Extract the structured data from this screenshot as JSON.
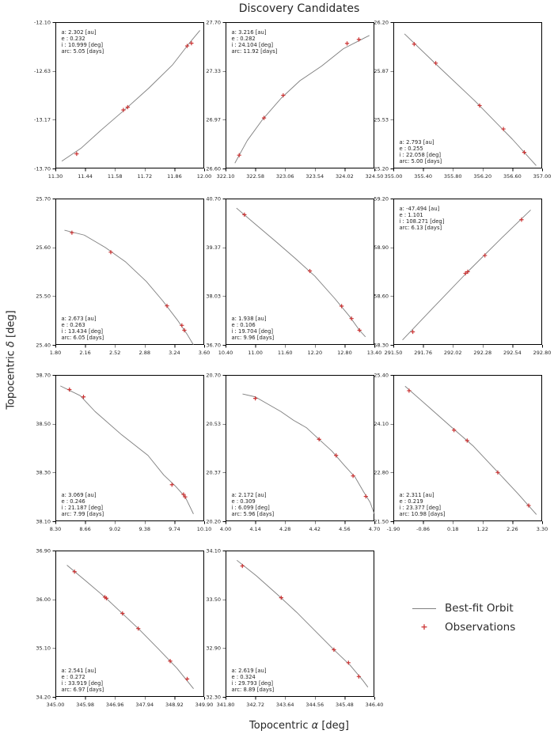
{
  "title": "Discovery Candidates",
  "xlabel": {
    "pre": "Topocentric ",
    "sym": "α",
    "post": " [deg]"
  },
  "ylabel": {
    "pre": "Topocentric ",
    "sym": "δ",
    "post": " [deg]"
  },
  "legend": {
    "line_label": "Best-fit Orbit",
    "marker_label": "Observations"
  },
  "colors": {
    "orbit": "#7f7f7f",
    "observation": "#cc3333",
    "text": "#262626",
    "spine": "#000000"
  },
  "chart_data": [
    {
      "type": "line",
      "row": 0,
      "col": 0,
      "xlim": [
        11.3,
        12.0
      ],
      "ylim": [
        -13.7,
        -12.1
      ],
      "xticks": [
        "11.30",
        "11.44",
        "11.58",
        "11.72",
        "11.86",
        "12.00"
      ],
      "yticks": [
        "-12.10",
        "-12.63",
        "-13.17",
        "-13.70"
      ],
      "annotation": [
        "a: 2.302 [au]",
        "e : 0.232",
        "i : 10.999 [deg]",
        "arc: 5.05 [days]"
      ],
      "annotation_pos": "top-left",
      "orbit": [
        [
          11.33,
          -13.62
        ],
        [
          11.42,
          -13.48
        ],
        [
          11.52,
          -13.27
        ],
        [
          11.63,
          -13.05
        ],
        [
          11.74,
          -12.82
        ],
        [
          11.85,
          -12.57
        ],
        [
          11.93,
          -12.33
        ],
        [
          11.98,
          -12.19
        ]
      ],
      "observations": [
        [
          11.4,
          -13.54
        ],
        [
          11.62,
          -13.06
        ],
        [
          11.64,
          -13.03
        ],
        [
          11.92,
          -12.36
        ],
        [
          11.94,
          -12.33
        ]
      ]
    },
    {
      "type": "line",
      "row": 0,
      "col": 1,
      "xlim": [
        322.1,
        324.5
      ],
      "ylim": [
        26.6,
        27.7
      ],
      "xticks": [
        "322.10",
        "322.58",
        "323.06",
        "323.54",
        "324.02",
        "324.50"
      ],
      "yticks": [
        "27.70",
        "27.33",
        "26.97",
        "26.60"
      ],
      "annotation": [
        "a: 3.216 [au]",
        "e : 0.282",
        "i : 24.104 [deg]",
        "arc: 11.92 [days]"
      ],
      "annotation_pos": "top-left",
      "orbit": [
        [
          322.25,
          26.64
        ],
        [
          322.45,
          26.81
        ],
        [
          322.7,
          26.97
        ],
        [
          323.0,
          27.13
        ],
        [
          323.3,
          27.26
        ],
        [
          323.65,
          27.37
        ],
        [
          324.0,
          27.5
        ],
        [
          324.25,
          27.56
        ],
        [
          324.42,
          27.6
        ]
      ],
      "observations": [
        [
          322.32,
          26.7
        ],
        [
          322.72,
          26.98
        ],
        [
          323.03,
          27.15
        ],
        [
          324.06,
          27.54
        ],
        [
          324.25,
          27.57
        ]
      ]
    },
    {
      "type": "line",
      "row": 0,
      "col": 2,
      "xlim": [
        355.0,
        357.0
      ],
      "ylim": [
        25.2,
        26.2
      ],
      "xticks": [
        "355.00",
        "355.40",
        "355.80",
        "356.20",
        "356.60",
        "357.00"
      ],
      "yticks": [
        "26.20",
        "25.87",
        "25.53",
        "25.20"
      ],
      "annotation": [
        "a: 2.793 [au]",
        "e : 0.255",
        "i : 22.058 [deg]",
        "arc: 5.00 [days]"
      ],
      "annotation_pos": "bottom-left",
      "orbit": [
        [
          355.15,
          26.12
        ],
        [
          355.6,
          25.9
        ],
        [
          356.1,
          25.66
        ],
        [
          356.6,
          25.4
        ],
        [
          356.92,
          25.22
        ]
      ],
      "observations": [
        [
          355.28,
          26.05
        ],
        [
          355.57,
          25.92
        ],
        [
          356.16,
          25.63
        ],
        [
          356.48,
          25.47
        ],
        [
          356.76,
          25.31
        ]
      ]
    },
    {
      "type": "line",
      "row": 1,
      "col": 0,
      "xlim": [
        1.8,
        3.6
      ],
      "ylim": [
        25.4,
        25.7
      ],
      "xticks": [
        "1.80",
        "2.16",
        "2.52",
        "2.88",
        "3.24",
        "3.60"
      ],
      "yticks": [
        "25.70",
        "25.60",
        "25.50",
        "25.40"
      ],
      "annotation": [
        "a: 2.673 [au]",
        "e : 0.263",
        "i : 13.434 [deg]",
        "arc: 6.05 [days]"
      ],
      "annotation_pos": "bottom-left",
      "orbit": [
        [
          1.91,
          25.635
        ],
        [
          2.15,
          25.625
        ],
        [
          2.4,
          25.6
        ],
        [
          2.65,
          25.57
        ],
        [
          2.9,
          25.53
        ],
        [
          3.1,
          25.49
        ],
        [
          3.28,
          25.45
        ],
        [
          3.4,
          25.42
        ],
        [
          3.47,
          25.4
        ]
      ],
      "observations": [
        [
          2.0,
          25.63
        ],
        [
          2.47,
          25.59
        ],
        [
          3.15,
          25.48
        ],
        [
          3.33,
          25.44
        ],
        [
          3.36,
          25.43
        ]
      ]
    },
    {
      "type": "line",
      "row": 1,
      "col": 1,
      "xlim": [
        10.4,
        13.4
      ],
      "ylim": [
        36.7,
        40.7
      ],
      "xticks": [
        "10.40",
        "11.00",
        "11.60",
        "12.20",
        "12.80",
        "13.40"
      ],
      "yticks": [
        "40.70",
        "39.37",
        "38.03",
        "36.70"
      ],
      "annotation": [
        "a: 1.938 [au]",
        "e : 0.106",
        "i : 19.704 [deg]",
        "arc: 9.96 [days]"
      ],
      "annotation_pos": "bottom-left",
      "orbit": [
        [
          10.62,
          40.44
        ],
        [
          11.0,
          40.0
        ],
        [
          11.4,
          39.54
        ],
        [
          11.8,
          39.07
        ],
        [
          12.2,
          38.58
        ],
        [
          12.6,
          37.97
        ],
        [
          12.9,
          37.48
        ],
        [
          13.1,
          37.1
        ],
        [
          13.22,
          36.92
        ]
      ],
      "observations": [
        [
          10.78,
          40.26
        ],
        [
          12.1,
          38.72
        ],
        [
          12.74,
          37.76
        ],
        [
          12.94,
          37.42
        ],
        [
          13.1,
          37.1
        ]
      ]
    },
    {
      "type": "line",
      "row": 1,
      "col": 2,
      "xlim": [
        291.5,
        292.8
      ],
      "ylim": [
        58.3,
        59.2
      ],
      "xticks": [
        "291.50",
        "291.76",
        "292.02",
        "292.28",
        "292.54",
        "292.80"
      ],
      "yticks": [
        "59.20",
        "58.90",
        "58.60",
        "58.30"
      ],
      "annotation": [
        "a: -47.494 [au]",
        "e : 1.101",
        "i : 108.271 [deg]",
        "arc: 6.13 [days]"
      ],
      "annotation_pos": "top-left",
      "orbit": [
        [
          291.58,
          58.33
        ],
        [
          291.85,
          58.53
        ],
        [
          292.15,
          58.75
        ],
        [
          292.45,
          58.96
        ],
        [
          292.7,
          59.13
        ]
      ],
      "observations": [
        [
          291.67,
          58.38
        ],
        [
          292.13,
          58.74
        ],
        [
          292.15,
          58.75
        ],
        [
          292.3,
          58.85
        ],
        [
          292.62,
          59.07
        ]
      ]
    },
    {
      "type": "line",
      "row": 2,
      "col": 0,
      "xlim": [
        8.3,
        10.1
      ],
      "ylim": [
        38.1,
        38.7
      ],
      "xticks": [
        "8.30",
        "8.66",
        "9.02",
        "9.38",
        "9.74",
        "10.10"
      ],
      "yticks": [
        "38.70",
        "38.50",
        "38.30",
        "38.10"
      ],
      "annotation": [
        "a: 3.069 [au]",
        "e : 0.246",
        "i : 21.187 [deg]",
        "arc: 7.99 [days]"
      ],
      "annotation_pos": "bottom-left",
      "orbit": [
        [
          8.36,
          38.655
        ],
        [
          8.6,
          38.615
        ],
        [
          8.78,
          38.55
        ],
        [
          9.1,
          38.455
        ],
        [
          9.42,
          38.37
        ],
        [
          9.61,
          38.29
        ],
        [
          9.75,
          38.245
        ],
        [
          9.87,
          38.2
        ],
        [
          9.97,
          38.13
        ]
      ],
      "observations": [
        [
          8.47,
          38.64
        ],
        [
          8.64,
          38.61
        ],
        [
          9.71,
          38.25
        ],
        [
          9.85,
          38.21
        ],
        [
          9.87,
          38.2
        ]
      ]
    },
    {
      "type": "line",
      "row": 2,
      "col": 1,
      "xlim": [
        4.0,
        4.7
      ],
      "ylim": [
        20.2,
        20.7
      ],
      "xticks": [
        "4.00",
        "4.14",
        "4.28",
        "4.42",
        "4.56",
        "4.70"
      ],
      "yticks": [
        "20.70",
        "20.53",
        "20.37",
        "20.20"
      ],
      "annotation": [
        "a: 2.172 [au]",
        "e : 0.309",
        "i : 6.099 [deg]",
        "arc: 5.96 [days]"
      ],
      "annotation_pos": "bottom-left",
      "orbit": [
        [
          4.08,
          20.635
        ],
        [
          4.14,
          20.625
        ],
        [
          4.2,
          20.6
        ],
        [
          4.26,
          20.575
        ],
        [
          4.32,
          20.545
        ],
        [
          4.38,
          20.52
        ],
        [
          4.44,
          20.48
        ],
        [
          4.5,
          20.44
        ],
        [
          4.56,
          20.39
        ],
        [
          4.61,
          20.35
        ],
        [
          4.65,
          20.3
        ],
        [
          4.68,
          20.265
        ],
        [
          4.7,
          20.225
        ]
      ],
      "observations": [
        [
          4.14,
          20.62
        ],
        [
          4.44,
          20.48
        ],
        [
          4.52,
          20.425
        ],
        [
          4.6,
          20.355
        ],
        [
          4.66,
          20.285
        ]
      ]
    },
    {
      "type": "line",
      "row": 2,
      "col": 2,
      "xlim": [
        -1.9,
        3.3
      ],
      "ylim": [
        21.5,
        25.4
      ],
      "xticks": [
        "-1.90",
        "-0.86",
        "0.18",
        "1.22",
        "2.26",
        "3.30"
      ],
      "yticks": [
        "25.40",
        "24.10",
        "22.80",
        "21.50"
      ],
      "annotation": [
        "a: 2.311 [au]",
        "e : 0.219",
        "i : 23.377 [deg]",
        "arc: 10.98 [days]"
      ],
      "annotation_pos": "bottom-left",
      "orbit": [
        [
          -1.49,
          25.1
        ],
        [
          -0.7,
          24.57
        ],
        [
          0.1,
          24.03
        ],
        [
          0.9,
          23.5
        ],
        [
          1.7,
          22.85
        ],
        [
          2.45,
          22.24
        ],
        [
          3.1,
          21.68
        ]
      ],
      "observations": [
        [
          -1.35,
          24.98
        ],
        [
          0.22,
          23.93
        ],
        [
          0.68,
          23.65
        ],
        [
          1.75,
          22.8
        ],
        [
          2.83,
          21.92
        ]
      ]
    },
    {
      "type": "line",
      "row": 3,
      "col": 0,
      "xlim": [
        345.0,
        349.9
      ],
      "ylim": [
        34.2,
        36.9
      ],
      "xticks": [
        "345.00",
        "345.98",
        "346.96",
        "347.94",
        "348.92",
        "349.90"
      ],
      "yticks": [
        "36.90",
        "36.00",
        "35.10",
        "34.20"
      ],
      "annotation": [
        "a: 2.541 [au]",
        "e : 0.272",
        "i : 33.919 [deg]",
        "arc: 6.97 [days]"
      ],
      "annotation_pos": "bottom-left",
      "orbit": [
        [
          345.38,
          36.63
        ],
        [
          346.0,
          36.34
        ],
        [
          346.65,
          36.03
        ],
        [
          347.2,
          35.74
        ],
        [
          347.75,
          35.45
        ],
        [
          348.4,
          35.08
        ],
        [
          349.0,
          34.73
        ],
        [
          349.55,
          34.35
        ]
      ],
      "observations": [
        [
          345.63,
          36.51
        ],
        [
          346.63,
          36.04
        ],
        [
          346.68,
          36.02
        ],
        [
          347.21,
          35.74
        ],
        [
          347.73,
          35.46
        ],
        [
          348.78,
          34.86
        ],
        [
          349.34,
          34.53
        ]
      ]
    },
    {
      "type": "line",
      "row": 3,
      "col": 1,
      "xlim": [
        341.8,
        346.4
      ],
      "ylim": [
        32.3,
        34.1
      ],
      "xticks": [
        "341.80",
        "342.72",
        "343.64",
        "344.56",
        "345.48",
        "346.40"
      ],
      "yticks": [
        "34.10",
        "33.50",
        "32.90",
        "32.30"
      ],
      "annotation": [
        "a: 2.619 [au]",
        "e : 0.324",
        "i : 29.793 [deg]",
        "arc: 8.89 [days]"
      ],
      "annotation_pos": "bottom-left",
      "orbit": [
        [
          342.15,
          33.98
        ],
        [
          342.75,
          33.79
        ],
        [
          343.4,
          33.56
        ],
        [
          344.0,
          33.34
        ],
        [
          344.6,
          33.1
        ],
        [
          345.15,
          32.88
        ],
        [
          345.65,
          32.69
        ],
        [
          346.05,
          32.5
        ],
        [
          346.2,
          32.42
        ]
      ],
      "observations": [
        [
          342.32,
          33.91
        ],
        [
          343.52,
          33.52
        ],
        [
          345.15,
          32.88
        ],
        [
          345.6,
          32.72
        ],
        [
          345.92,
          32.55
        ]
      ]
    }
  ]
}
